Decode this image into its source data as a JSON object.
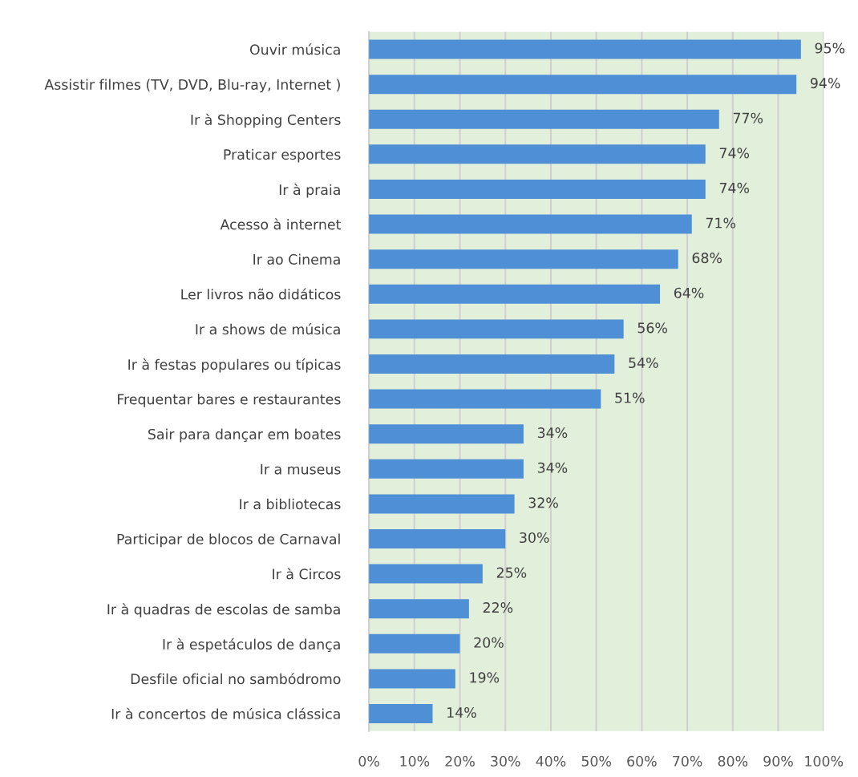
{
  "chart_data": {
    "type": "bar",
    "orientation": "horizontal",
    "categories": [
      "Ouvir música",
      "Assistir filmes (TV, DVD, Blu-ray, Internet )",
      "Ir à Shopping Centers",
      "Praticar esportes",
      "Ir à praia",
      "Acesso à internet",
      "Ir ao Cinema",
      "Ler livros não didáticos",
      "Ir a shows de música",
      "Ir à festas populares ou típicas",
      "Frequentar bares e restaurantes",
      "Sair para dançar em boates",
      "Ir a museus",
      "Ir a bibliotecas",
      "Participar de blocos de Carnaval",
      "Ir à Circos",
      "Ir à quadras de escolas de samba",
      "Ir à espetáculos de dança",
      "Desfile oficial no sambódromo",
      "Ir à concertos de música clássica"
    ],
    "values": [
      95,
      94,
      77,
      74,
      74,
      71,
      68,
      64,
      56,
      54,
      51,
      34,
      34,
      32,
      30,
      25,
      22,
      20,
      19,
      14
    ],
    "value_labels": [
      "95%",
      "94%",
      "77%",
      "74%",
      "74%",
      "71%",
      "68%",
      "64%",
      "56%",
      "54%",
      "51%",
      "34%",
      "34%",
      "32%",
      "30%",
      "25%",
      "22%",
      "20%",
      "19%",
      "14%"
    ],
    "color": "#4f8fd6",
    "xlim": [
      0,
      100
    ],
    "xticks": [
      {
        "value": 0,
        "label": "0%"
      },
      {
        "value": 10,
        "label": "10%"
      },
      {
        "value": 20,
        "label": "20%"
      },
      {
        "value": 30,
        "label": "30%"
      },
      {
        "value": 40,
        "label": "40%"
      },
      {
        "value": 50,
        "label": "50%"
      },
      {
        "value": 60,
        "label": "60%"
      },
      {
        "value": 70,
        "label": "70%"
      },
      {
        "value": 80,
        "label": "80%"
      },
      {
        "value": 90,
        "label": "90%"
      },
      {
        "value": 100,
        "label": "100%"
      }
    ],
    "grid": "x",
    "legend": false
  }
}
